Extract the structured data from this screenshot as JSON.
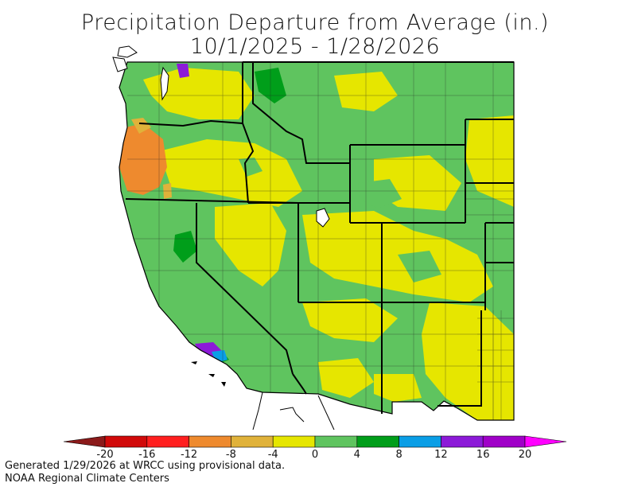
{
  "title": {
    "line1": "Precipitation Departure from Average (in.)",
    "line2": "10/1/2025 - 1/28/2026"
  },
  "legend": {
    "tick_labels": [
      "-20",
      "-16",
      "-12",
      "-8",
      "-4",
      "0",
      "4",
      "8",
      "12",
      "16",
      "20"
    ],
    "colors": [
      "#8b1a1a",
      "#d10a0a",
      "#ff1f1f",
      "#ee8a2e",
      "#e0b23a",
      "#e6e600",
      "#5fc45f",
      "#009e1a",
      "#0a9ee6",
      "#8c1ad8",
      "#a000c8",
      "#ff00ff"
    ]
  },
  "palette": {
    "surplus_light": "#5fc45f",
    "near_zero": "#e6e600",
    "deficit_orange": "#ee8a2e",
    "deficit_tan": "#e0b23a",
    "surplus_dark": "#009e1a",
    "surplus_blue": "#0a9ee6",
    "surplus_purple": "#8c1ad8"
  },
  "footer": {
    "line1": "Generated 1/29/2026 at WRCC using provisional data.",
    "line2": "NOAA Regional Climate Centers"
  }
}
